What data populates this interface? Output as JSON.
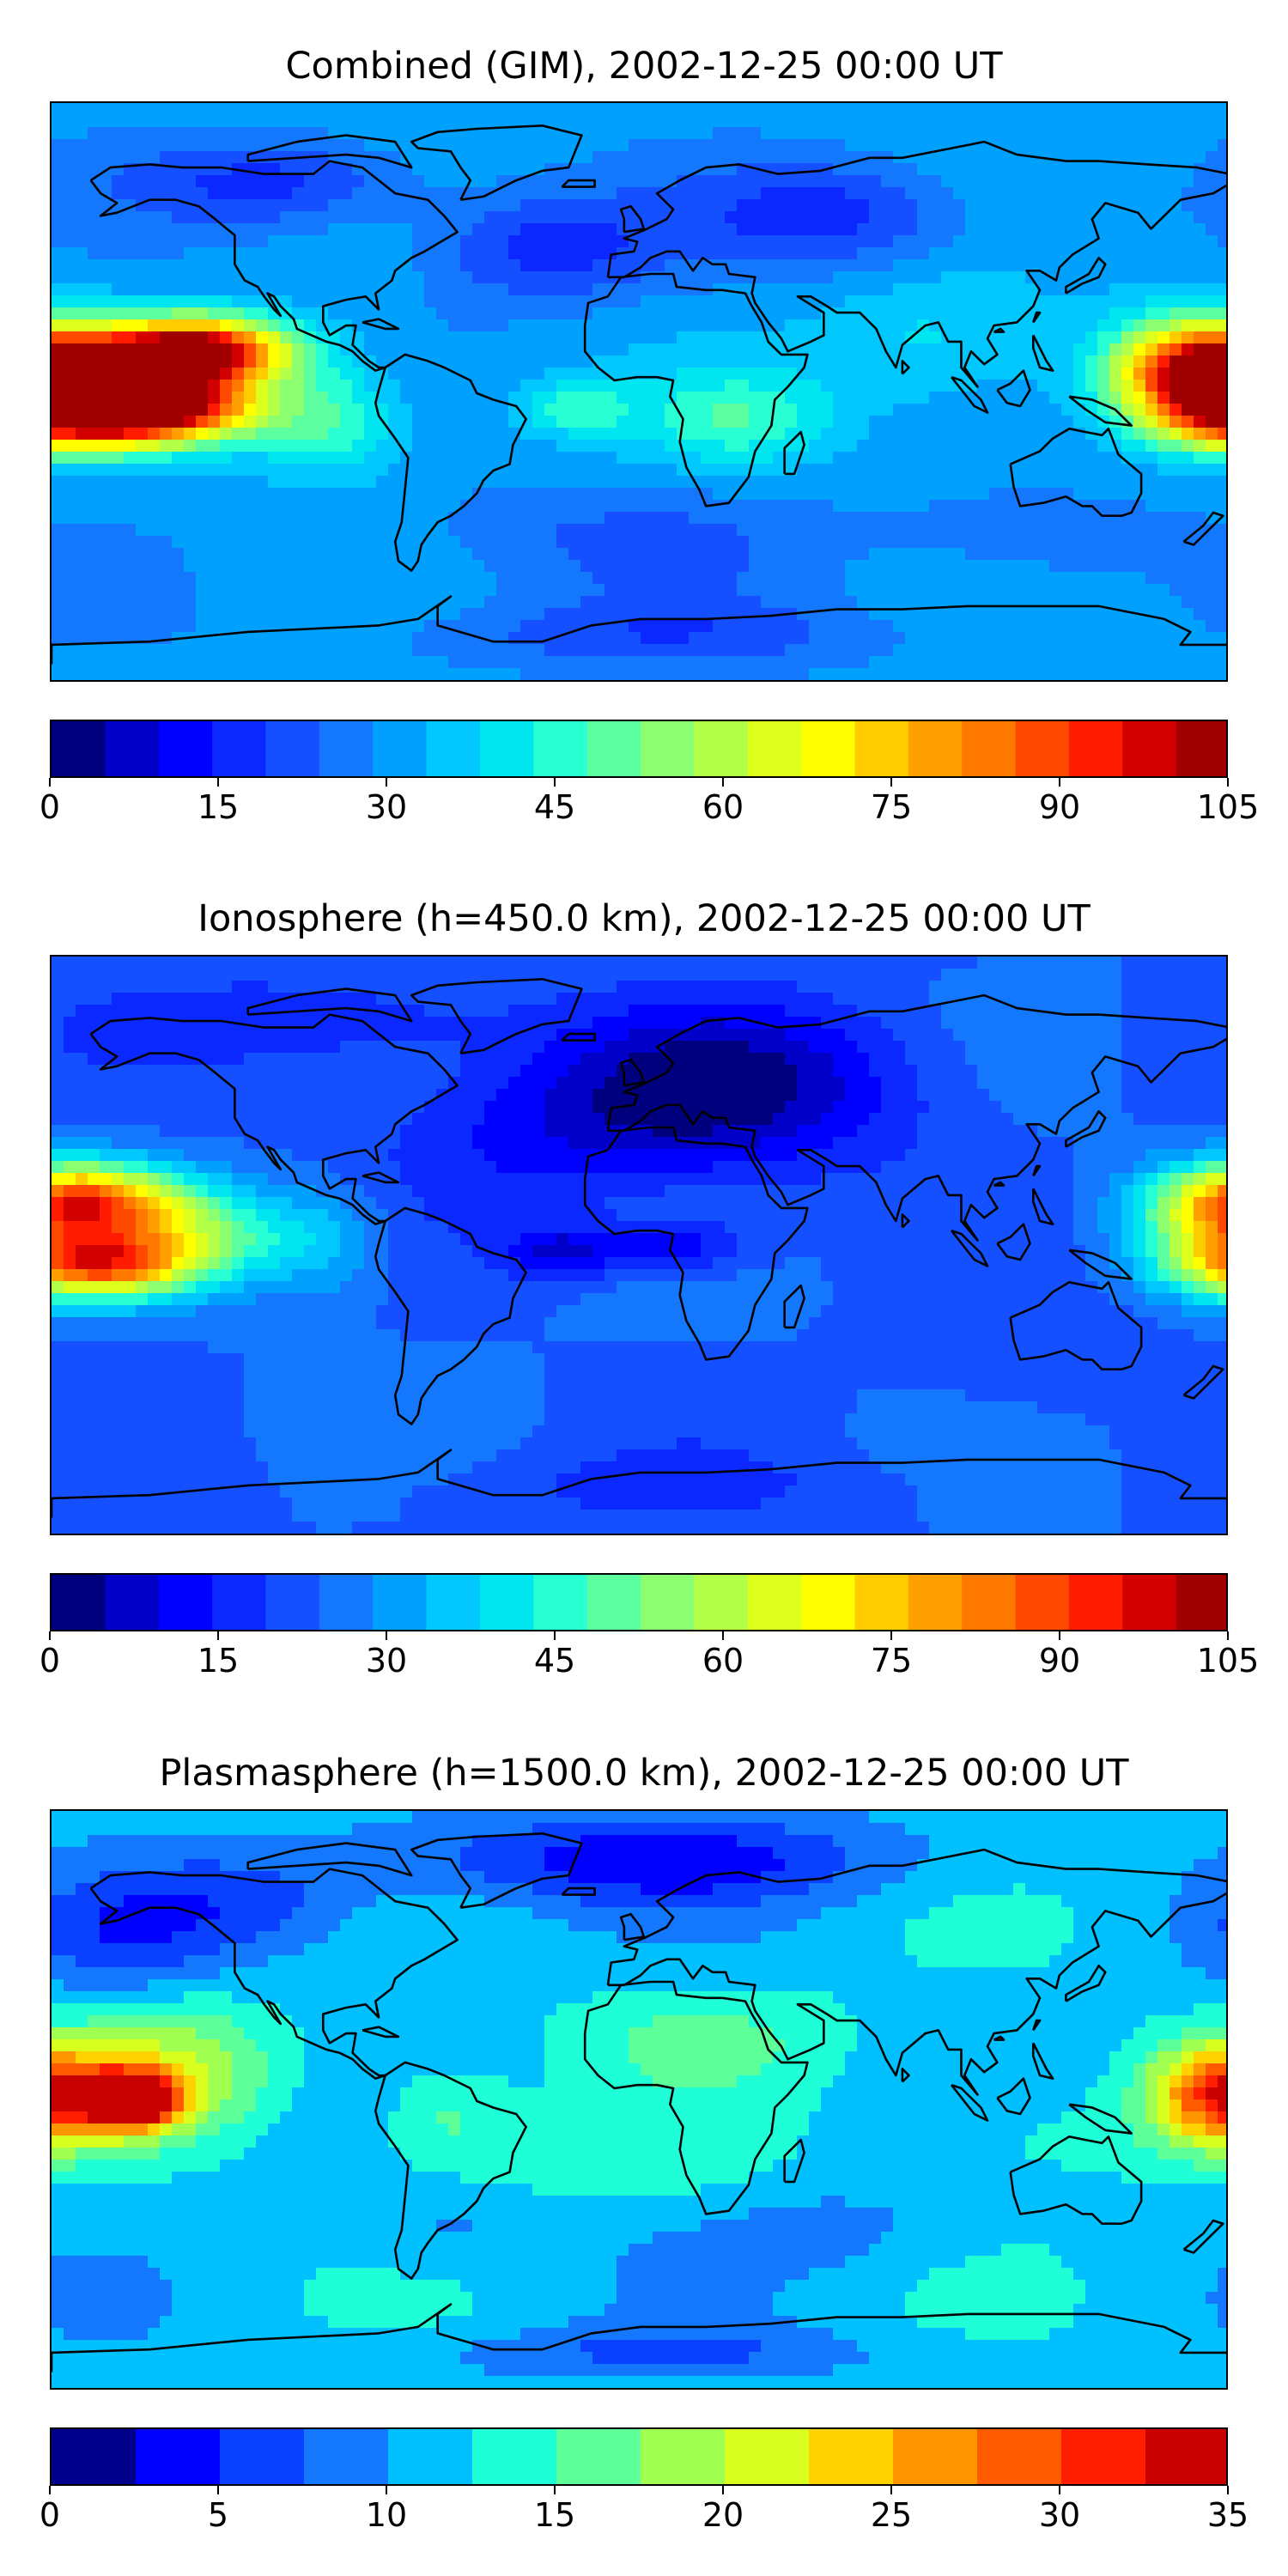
{
  "panels": [
    {
      "title": "Combined (GIM), 2002-12-25 00:00 UT",
      "colorbar": {
        "colors": [
          "#00007f",
          "#0000c8",
          "#0000ff",
          "#0a28ff",
          "#1450ff",
          "#1478ff",
          "#00a0ff",
          "#00c8ff",
          "#00e6f0",
          "#28ffd2",
          "#5cffa0",
          "#8cff70",
          "#b4ff48",
          "#dcff1e",
          "#ffff00",
          "#ffcc00",
          "#ffa000",
          "#ff7800",
          "#ff4800",
          "#ff1c00",
          "#d20000",
          "#a00000"
        ],
        "ticks": [
          "0",
          "15",
          "30",
          "45",
          "60",
          "75",
          "90",
          "105"
        ]
      }
    },
    {
      "title": "Ionosphere  (h=450.0 km), 2002-12-25 00:00 UT",
      "colorbar": {
        "colors": [
          "#00007f",
          "#0000c8",
          "#0000ff",
          "#0a28ff",
          "#1450ff",
          "#1478ff",
          "#00a0ff",
          "#00c8ff",
          "#00e6f0",
          "#28ffd2",
          "#5cffa0",
          "#8cff70",
          "#b4ff48",
          "#dcff1e",
          "#ffff00",
          "#ffcc00",
          "#ffa000",
          "#ff7800",
          "#ff4800",
          "#ff1c00",
          "#d20000",
          "#a00000"
        ],
        "ticks": [
          "0",
          "15",
          "30",
          "45",
          "60",
          "75",
          "90",
          "105"
        ]
      }
    },
    {
      "title": "Plasmasphere (h=1500.0 km), 2002-12-25 00:00 UT",
      "colorbar": {
        "colors": [
          "#00008b",
          "#0000ff",
          "#0a40ff",
          "#1478ff",
          "#00c0ff",
          "#1effd8",
          "#5cff98",
          "#a0ff50",
          "#d8ff1e",
          "#ffd200",
          "#ff9600",
          "#ff5a00",
          "#ff1e00",
          "#c80000"
        ],
        "ticks": [
          "0",
          "5",
          "10",
          "15",
          "20",
          "25",
          "30",
          "35"
        ]
      }
    }
  ]
}
